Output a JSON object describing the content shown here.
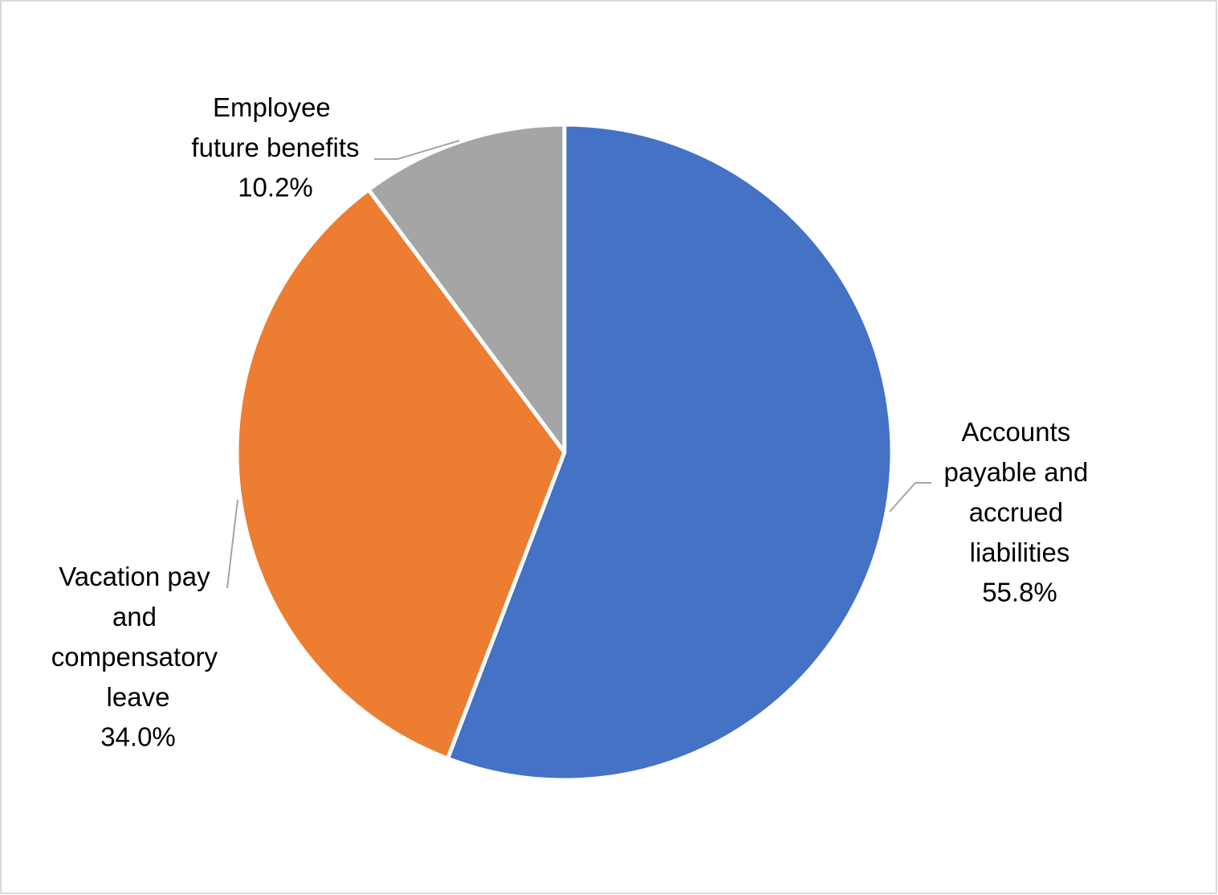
{
  "chart_data": {
    "type": "pie",
    "categories": [
      "Accounts payable and accrued liabilities",
      "Vacation pay and compensatory leave",
      "Employee future benefits"
    ],
    "values": [
      55.8,
      34.0,
      10.2
    ],
    "value_labels": [
      "55.8%",
      "34.0%",
      "10.2%"
    ],
    "colors": [
      "#4472c4",
      "#ed7d31",
      "#a5a5a5"
    ]
  }
}
